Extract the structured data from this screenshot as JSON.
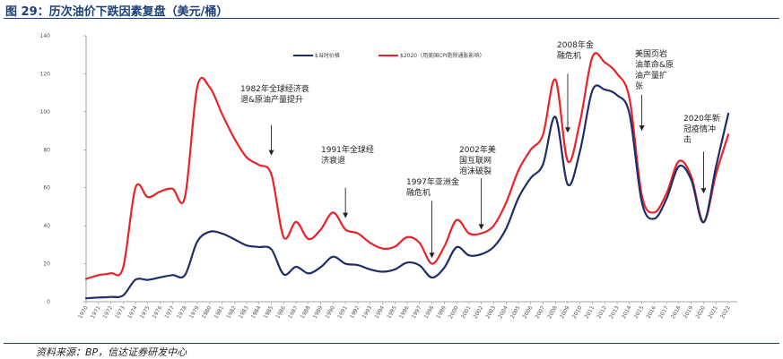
{
  "header": {
    "title": "图 29：历次油价下跌因素复盘（美元/桶）"
  },
  "footer": {
    "source": "资料来源：BP，信达证券研发中心"
  },
  "chart_data": {
    "type": "line",
    "categories": [
      "1970",
      "1971",
      "1972",
      "1973",
      "1974",
      "1975",
      "1976",
      "1977",
      "1978",
      "1979",
      "1980",
      "1981",
      "1982",
      "1983",
      "1984",
      "1985",
      "1986",
      "1987",
      "1988",
      "1989",
      "1990",
      "1991",
      "1992",
      "1993",
      "1994",
      "1995",
      "1996",
      "1997",
      "1998",
      "1999",
      "2000",
      "2001",
      "2002",
      "2003",
      "2004",
      "2005",
      "2006",
      "2007",
      "2008",
      "2009",
      "2010",
      "2011",
      "2012",
      "2013",
      "2014",
      "2015",
      "2016",
      "2017",
      "2018",
      "2019",
      "2020",
      "2021",
      "2022"
    ],
    "ylim": [
      0,
      140
    ],
    "yticks": [
      0,
      20,
      40,
      60,
      80,
      100,
      120,
      140
    ],
    "grid": false,
    "legend_position": "top-right",
    "series": [
      {
        "name": "$当时价格",
        "color": "#1f2d6b",
        "values": [
          1.8,
          2.2,
          2.5,
          3.3,
          11.6,
          11.5,
          12.8,
          14.0,
          14.0,
          31.6,
          36.8,
          35.9,
          32.9,
          29.6,
          28.8,
          27.6,
          14.4,
          18.4,
          14.9,
          18.2,
          23.7,
          20.0,
          19.3,
          17.0,
          15.8,
          17.0,
          20.6,
          19.1,
          12.7,
          17.9,
          28.7,
          24.4,
          25.0,
          28.8,
          38.3,
          54.5,
          65.1,
          72.4,
          97.3,
          61.7,
          79.5,
          111.3,
          111.7,
          108.7,
          98.9,
          52.4,
          43.7,
          54.2,
          71.3,
          64.2,
          41.8,
          70.9,
          99.0
        ]
      },
      {
        "name": "$2020（用美国CPI剔除通胀影响）",
        "color": "#e8232a",
        "values": [
          12.0,
          14.0,
          15.0,
          18.0,
          60.0,
          55.0,
          58.0,
          59.5,
          55.0,
          113.0,
          113.0,
          99.0,
          86.0,
          76.0,
          72.0,
          67.0,
          34.0,
          42.0,
          33.0,
          38.0,
          47.0,
          38.0,
          36.0,
          31.0,
          28.0,
          29.0,
          34.0,
          31.0,
          20.0,
          29.0,
          43.0,
          36.0,
          36.0,
          40.0,
          52.0,
          69.0,
          80.0,
          88.0,
          117.0,
          74.0,
          95.0,
          129.0,
          126.0,
          120.0,
          107.0,
          56.0,
          47.0,
          57.0,
          74.0,
          66.0,
          42.0,
          67.0,
          88.0
        ]
      }
    ],
    "annotations": [
      {
        "text": [
          "1982年全球经济衰",
          "退&原油产量提升"
        ],
        "year": 1985,
        "arrow_from": 93,
        "arrow_to": 77
      },
      {
        "text": [
          "1991年全球经",
          "济衰退"
        ],
        "year": 1991,
        "arrow_from": 60,
        "arrow_to": 44
      },
      {
        "text": [
          "1997年亚洲金",
          "融危机"
        ],
        "year": 1998,
        "arrow_from": 53,
        "arrow_to": 23
      },
      {
        "text": [
          "2002年美",
          "国互联网",
          "泡沫破裂"
        ],
        "year": 2002,
        "arrow_from": 65,
        "arrow_to": 38
      },
      {
        "text": [
          "2008年金",
          "融危机"
        ],
        "year": 2009,
        "arrow_from": 120,
        "arrow_to": 89
      },
      {
        "text": [
          "美国页岩",
          "油革命&原",
          "油产量扩",
          "张"
        ],
        "year": 2015,
        "arrow_from": 109,
        "arrow_to": 90
      },
      {
        "text": [
          "2020年新",
          "冠疫情冲",
          "击"
        ],
        "year": 2020,
        "arrow_from": 79,
        "arrow_to": 57
      }
    ]
  }
}
